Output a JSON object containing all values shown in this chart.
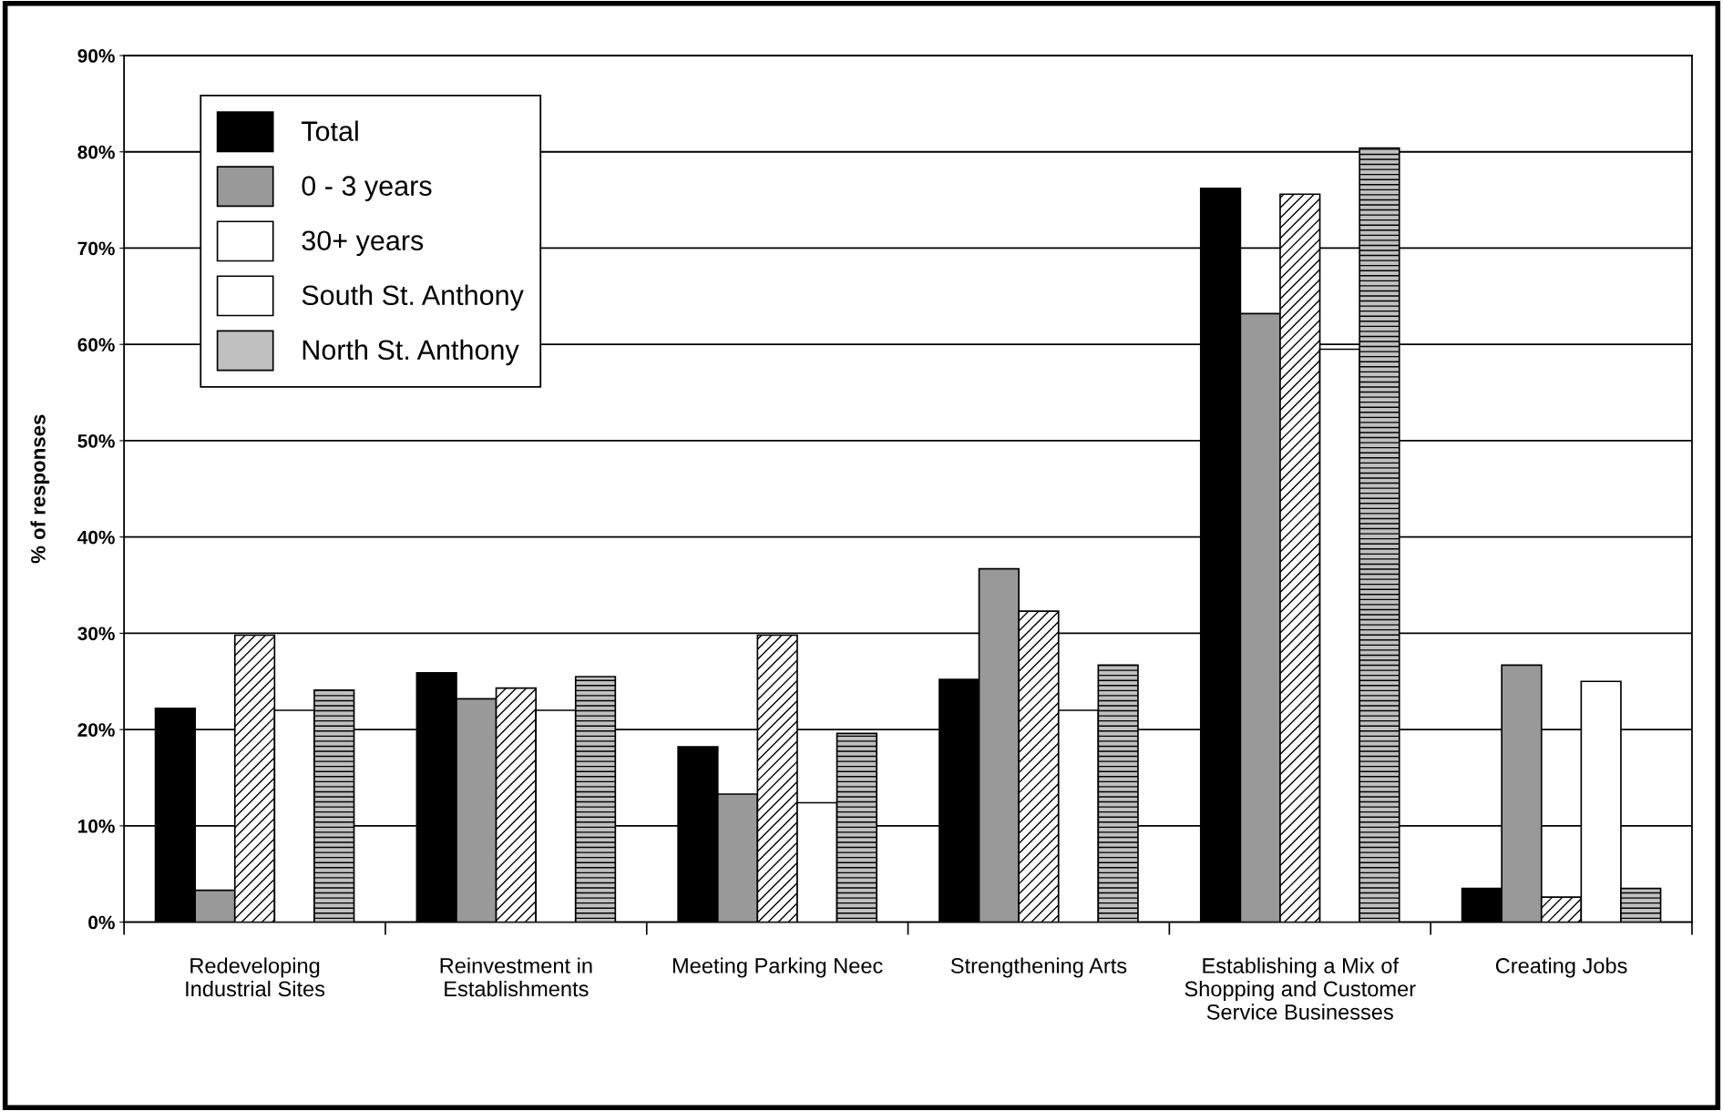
{
  "chart_data": {
    "type": "bar",
    "ylabel": "% of responses",
    "categories": [
      "Redeveloping\nIndustrial Sites",
      "Reinvestment in\nEstablishments",
      "Meeting Parking Neec",
      "Strengthening Arts",
      "Establishing a Mix of\nShopping and Customer\nService Businesses",
      "Creating Jobs"
    ],
    "series": [
      {
        "name": "Total",
        "color": "#000000",
        "values": [
          22.2,
          25.9,
          18.2,
          25.2,
          76.2,
          3.5
        ]
      },
      {
        "name": "0 - 3 years",
        "color": "#999999",
        "values": [
          3.3,
          23.2,
          13.3,
          36.7,
          63.2,
          26.7
        ]
      },
      {
        "name": "30+ years",
        "color": "#ffffff",
        "values": [
          29.8,
          24.3,
          29.8,
          32.3,
          75.6,
          2.6
        ]
      },
      {
        "name": "South St. Anthony",
        "color": "#ffffff",
        "values": [
          22.0,
          22.0,
          12.4,
          22.0,
          59.5,
          25.0
        ]
      },
      {
        "name": "North St. Anthony",
        "color": "#c0c0c0",
        "values": [
          24.1,
          25.5,
          19.6,
          26.7,
          80.4,
          3.5
        ]
      }
    ],
    "ylim": [
      0,
      90
    ],
    "yticks": [
      {
        "value": 0,
        "label": "0%"
      },
      {
        "value": 10,
        "label": "10%"
      },
      {
        "value": 20,
        "label": "20%"
      },
      {
        "value": 30,
        "label": "30%"
      },
      {
        "value": 40,
        "label": "40%"
      },
      {
        "value": 50,
        "label": "50%"
      },
      {
        "value": 60,
        "label": "60%"
      },
      {
        "value": 70,
        "label": "70%"
      },
      {
        "value": 80,
        "label": "80%"
      },
      {
        "value": 90,
        "label": "90%"
      }
    ],
    "grid": "y",
    "legend": "top left"
  }
}
